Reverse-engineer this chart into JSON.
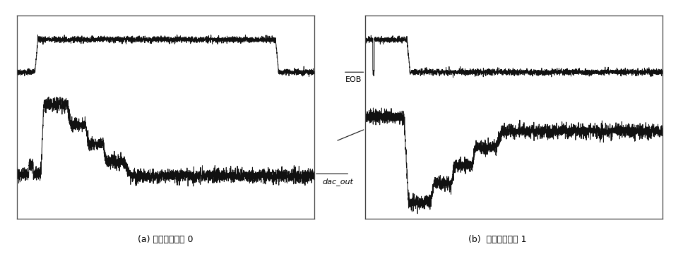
{
  "fig_width": 9.67,
  "fig_height": 3.6,
  "bg_color": "#ffffff",
  "panel_bg": "#ffffff",
  "signal_color": "#111111",
  "label_a": "(a) 比较器输出为 0",
  "label_b": "(b)  比较器输出为 1",
  "eob_label": "EOB",
  "dac_label": "dac_out",
  "noise_amplitude": 0.018,
  "noise_seed_a": 42,
  "noise_seed_b": 99
}
